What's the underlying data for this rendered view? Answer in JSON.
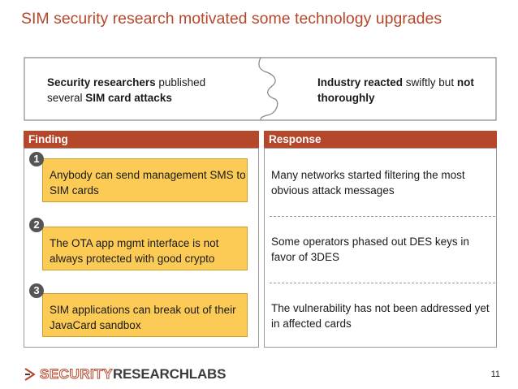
{
  "slide": {
    "title": "SIM security research motivated some technology upgrades",
    "page_number": "11"
  },
  "puzzle": {
    "left": {
      "bold": "Security researchers",
      "text1": " published several ",
      "bold2": "SIM card attacks"
    },
    "right": {
      "bold": "Industry reacted",
      "text1": " swiftly but ",
      "bold2": "not thoroughly"
    }
  },
  "columns": {
    "finding_header": "Finding",
    "response_header": "Response"
  },
  "findings": [
    {
      "number": "1",
      "text": "Anybody can send management SMS to SIM cards"
    },
    {
      "number": "2",
      "text": "The OTA app mgmt interface is not always protected with good crypto"
    },
    {
      "number": "3",
      "text": "SIM applications can break out of their JavaCard sandbox"
    }
  ],
  "responses": [
    {
      "text": "Many networks started filtering the most obvious attack messages"
    },
    {
      "text": "Some operators phased out DES keys in favor of 3DES"
    },
    {
      "text": "The vulnerability has not been addressed yet in affected cards"
    }
  ],
  "logo": {
    "part1": "SECURITY",
    "part2": "RESEARCHLABS",
    "icon": "srlabs-chevron-icon"
  },
  "colors": {
    "accent": "#b5472a",
    "finding_fill": "#fccb55",
    "badge": "#555555"
  }
}
